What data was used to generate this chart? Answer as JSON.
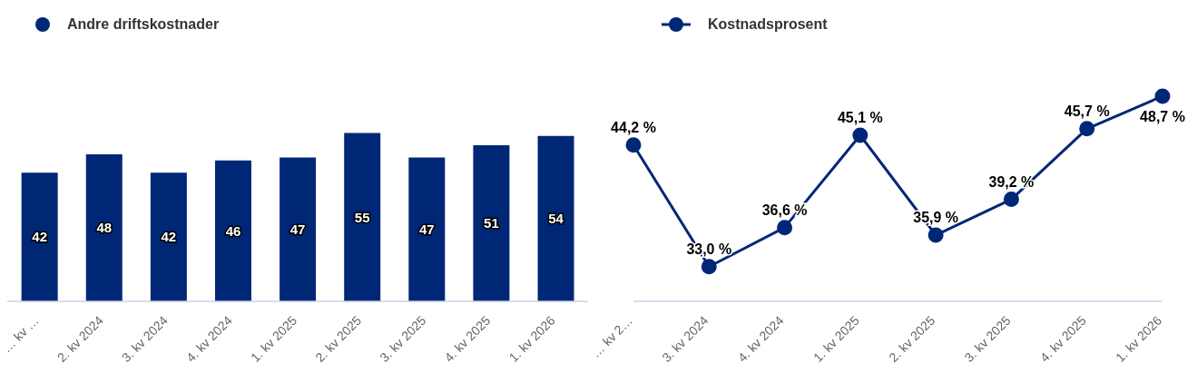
{
  "chart_data": [
    {
      "type": "bar",
      "categories": [
        "… kv …",
        "2. kv 2024",
        "3. kv 2024",
        "4. kv 2024",
        "1. kv 2025",
        "2. kv 2025",
        "3. kv 2025",
        "4. kv 2025",
        "1. kv 2026"
      ],
      "series": [
        {
          "name": "Andre driftskostnader",
          "color": "#002776",
          "values": [
            42,
            48,
            42,
            46,
            47,
            55,
            47,
            51,
            54
          ]
        }
      ],
      "data_labels": true,
      "legend": "top left",
      "grid": false
    },
    {
      "type": "line",
      "categories": [
        "… kv 2…",
        "3. kv 2024",
        "4. kv 2024",
        "1. kv 2025",
        "2. kv 2025",
        "3. kv 2025",
        "4. kv 2025",
        "1. kv 2026"
      ],
      "series": [
        {
          "name": "Kostnadsprosent",
          "color": "#002776",
          "values": [
            44.2,
            33.0,
            36.6,
            45.1,
            35.9,
            39.2,
            45.7,
            48.7
          ],
          "value_labels": [
            "44,2 %",
            "33,0 %",
            "36,6 %",
            "45,1 %",
            "35,9 %",
            "39,2 %",
            "45,7 %",
            "48,7 %"
          ]
        }
      ],
      "marker": "circle",
      "line_style": "solid",
      "legend": "top left",
      "grid": false
    }
  ]
}
